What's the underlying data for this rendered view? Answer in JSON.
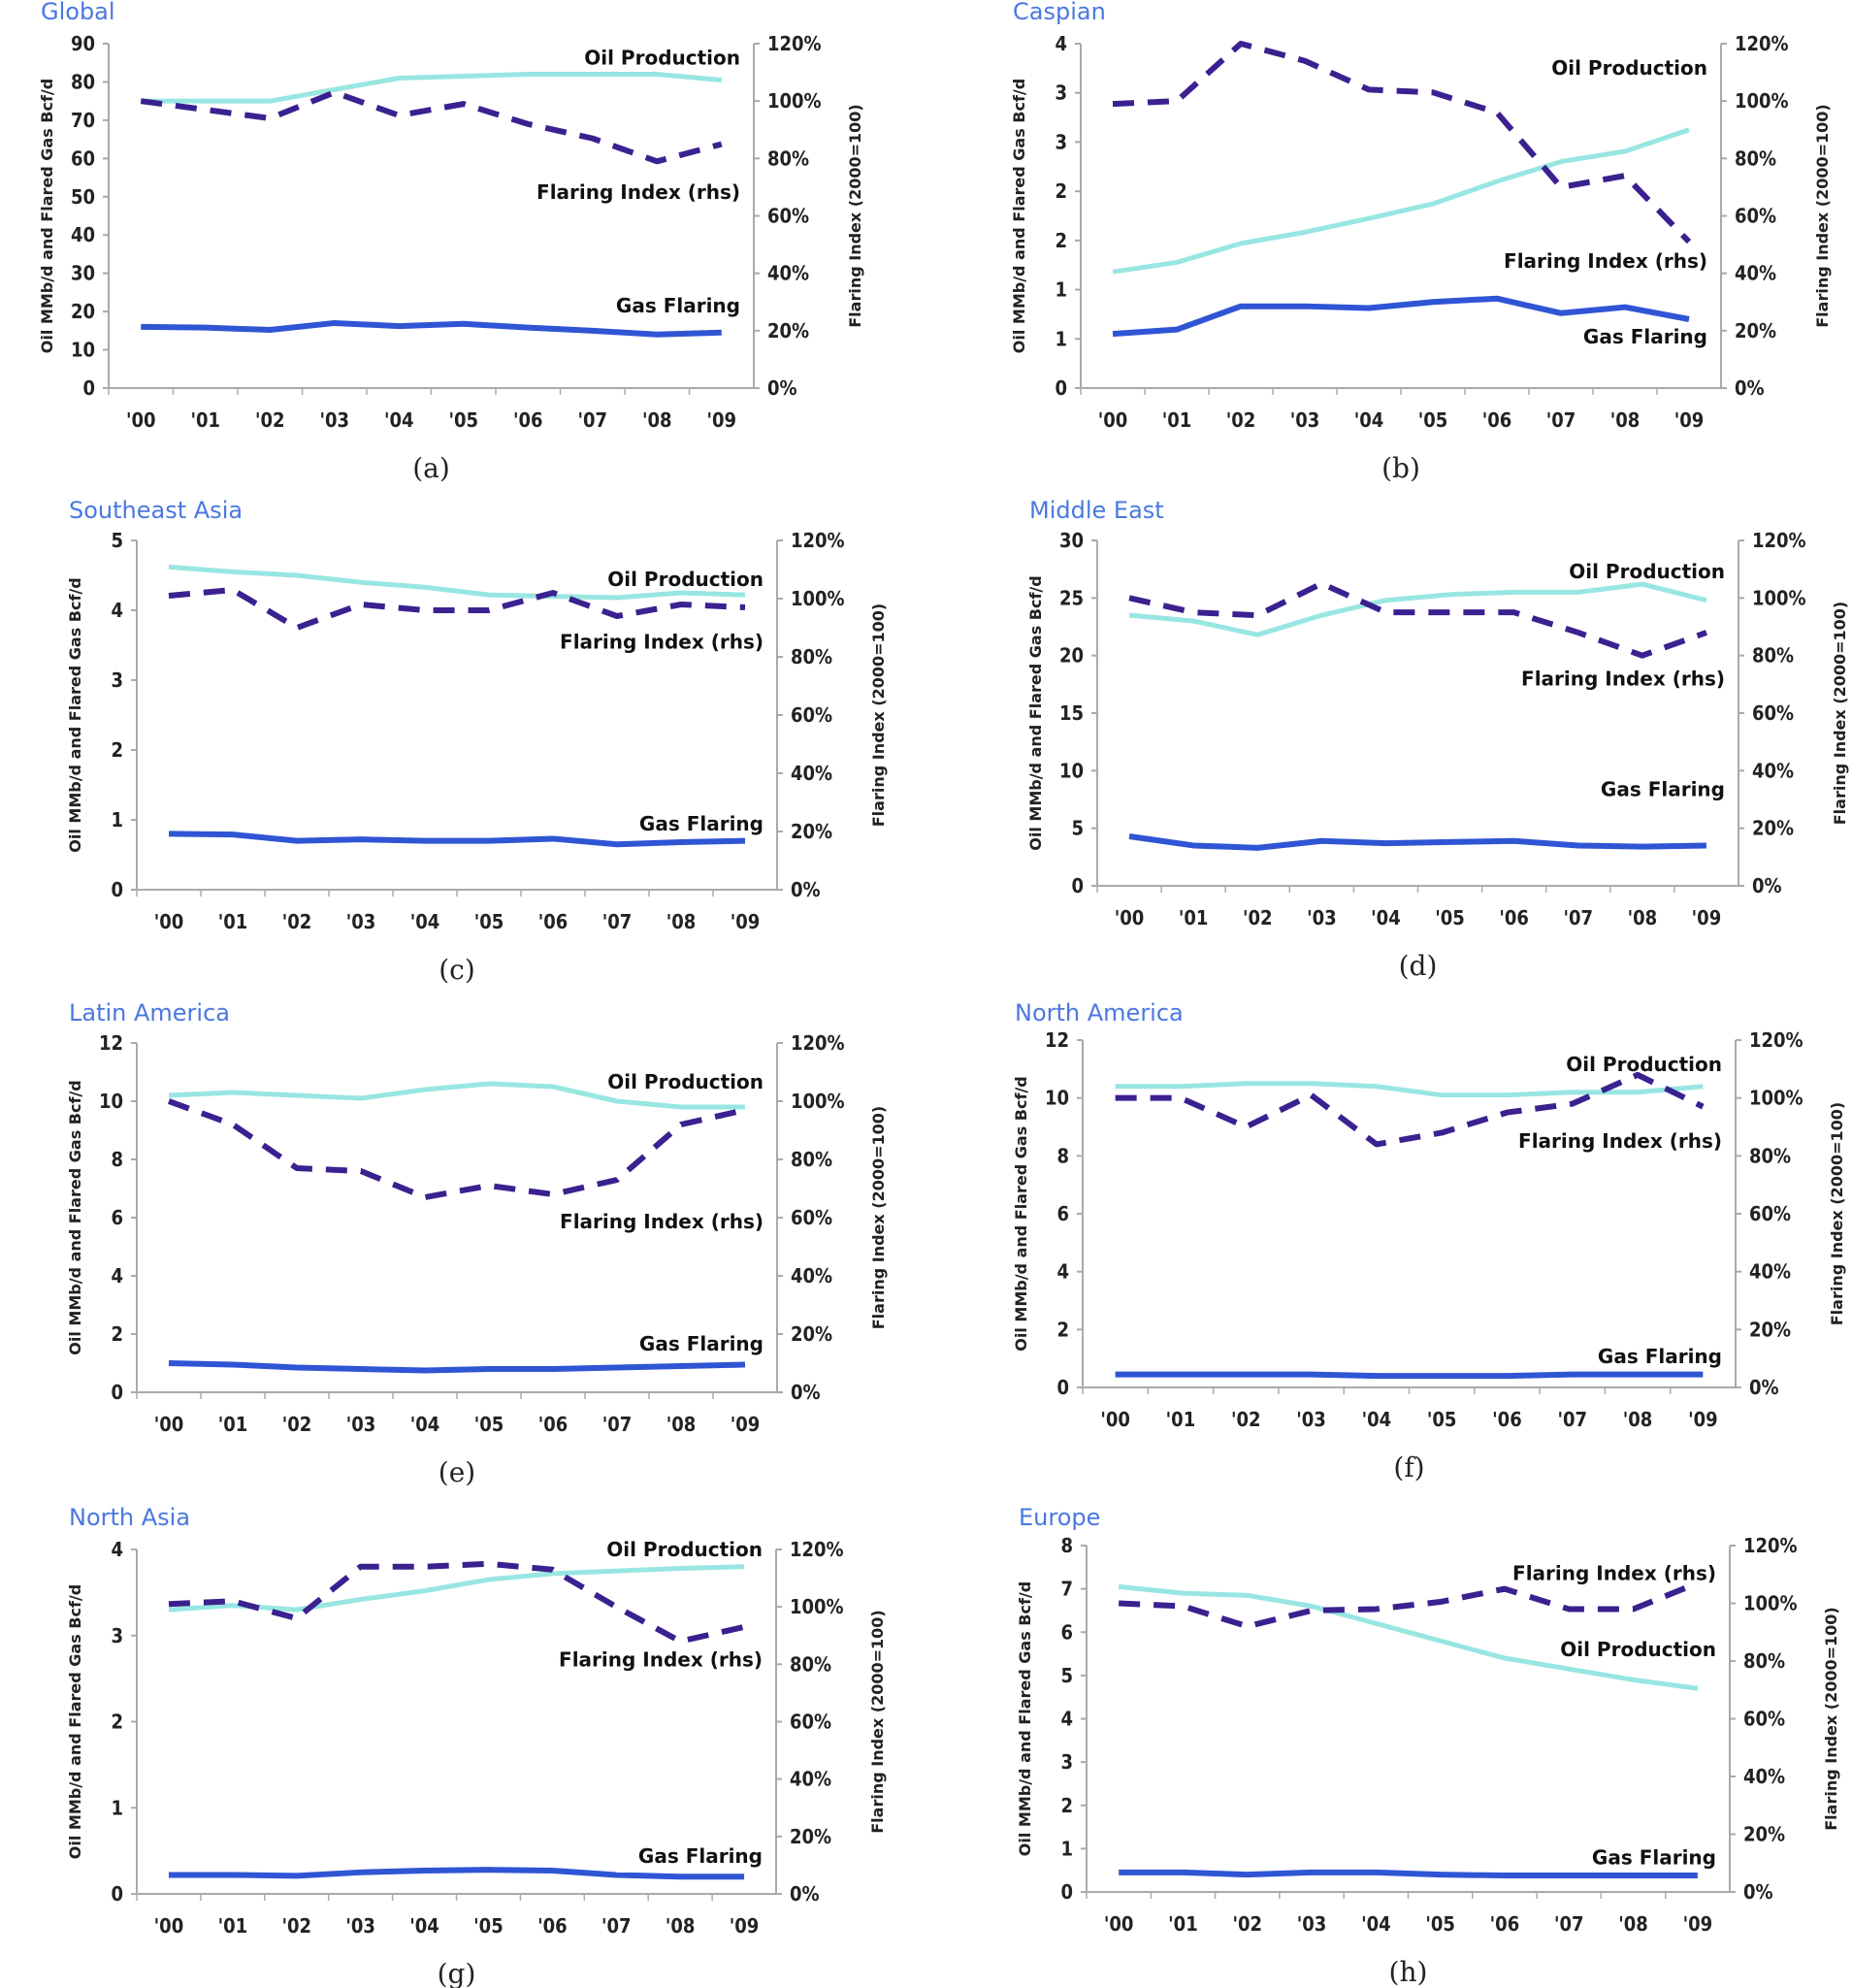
{
  "colors": {
    "oil": "#98e6e2",
    "gas": "#2f55d4",
    "index": "#3b2190",
    "title": "#4a78e0",
    "axis": "#aaaaaa"
  },
  "y_axis_title": "Oil MMb/d and Flared Gas Bcf/d",
  "y2_axis_title": "Flaring Index (2000=100)",
  "chart_data": [
    {
      "type": "line",
      "title": "Global",
      "caption": "(a)",
      "categories": [
        "'00",
        "'01",
        "'02",
        "'03",
        "'04",
        "'05",
        "'06",
        "'07",
        "'08",
        "'09"
      ],
      "ylim": [
        0,
        90
      ],
      "yticks": [
        "0",
        "10",
        "20",
        "30",
        "40",
        "50",
        "60",
        "70",
        "80",
        "90"
      ],
      "y2lim": [
        0,
        120
      ],
      "y2ticks": [
        "0%",
        "20%",
        "40%",
        "60%",
        "80%",
        "100%",
        "120%"
      ],
      "series": [
        {
          "name": "Oil Production",
          "axis": "left",
          "values": [
            75,
            75,
            75,
            78,
            81,
            81.5,
            82,
            82,
            82,
            80.5
          ]
        },
        {
          "name": "Flaring Index (rhs)",
          "axis": "right",
          "values": [
            100,
            97,
            94,
            103,
            95,
            99,
            92,
            87,
            79,
            85
          ]
        },
        {
          "name": "Gas Flaring",
          "axis": "left",
          "values": [
            16,
            15.8,
            15.2,
            17,
            16.2,
            16.8,
            15.8,
            15,
            14,
            14.5
          ]
        }
      ]
    },
    {
      "type": "line",
      "title": "Caspian",
      "caption": "(b)",
      "categories": [
        "'00",
        "'01",
        "'02",
        "'03",
        "'04",
        "'05",
        "'06",
        "'07",
        "'08",
        "'09"
      ],
      "ylim": [
        0,
        4
      ],
      "yticks": [
        "0",
        "1",
        "1",
        "2",
        "2",
        "3",
        "3",
        "4"
      ],
      "y2lim": [
        0,
        120
      ],
      "y2ticks": [
        "0%",
        "20%",
        "40%",
        "60%",
        "80%",
        "100%",
        "120%"
      ],
      "series": [
        {
          "name": "Oil Production",
          "axis": "left",
          "values": [
            1.35,
            1.46,
            1.68,
            1.81,
            1.97,
            2.14,
            2.4,
            2.63,
            2.75,
            3.0
          ]
        },
        {
          "name": "Flaring Index (rhs)",
          "axis": "right",
          "values": [
            99,
            100,
            120,
            114,
            104,
            103,
            96,
            70,
            74,
            51
          ]
        },
        {
          "name": "Gas Flaring",
          "axis": "left",
          "values": [
            0.63,
            0.68,
            0.95,
            0.95,
            0.93,
            1.0,
            1.04,
            0.87,
            0.94,
            0.8
          ]
        }
      ]
    },
    {
      "type": "line",
      "title": "Southeast Asia",
      "caption": "(c)",
      "categories": [
        "'00",
        "'01",
        "'02",
        "'03",
        "'04",
        "'05",
        "'06",
        "'07",
        "'08",
        "'09"
      ],
      "ylim": [
        0,
        5
      ],
      "yticks": [
        "0",
        "1",
        "2",
        "3",
        "4",
        "5"
      ],
      "y2lim": [
        0,
        120
      ],
      "y2ticks": [
        "0%",
        "20%",
        "40%",
        "60%",
        "80%",
        "100%",
        "120%"
      ],
      "series": [
        {
          "name": "Oil Production",
          "axis": "left",
          "values": [
            4.62,
            4.55,
            4.5,
            4.4,
            4.33,
            4.22,
            4.2,
            4.18,
            4.25,
            4.22
          ]
        },
        {
          "name": "Flaring Index (rhs)",
          "axis": "right",
          "values": [
            101,
            103,
            90,
            98,
            96,
            96,
            102,
            94,
            98,
            97
          ]
        },
        {
          "name": "Gas Flaring",
          "axis": "left",
          "values": [
            0.8,
            0.79,
            0.7,
            0.72,
            0.7,
            0.7,
            0.73,
            0.65,
            0.68,
            0.7
          ]
        }
      ]
    },
    {
      "type": "line",
      "title": "Middle East",
      "caption": "(d)",
      "categories": [
        "'00",
        "'01",
        "'02",
        "'03",
        "'04",
        "'05",
        "'06",
        "'07",
        "'08",
        "'09"
      ],
      "ylim": [
        0,
        30
      ],
      "yticks": [
        "0",
        "5",
        "10",
        "15",
        "20",
        "25",
        "30"
      ],
      "y2lim": [
        0,
        120
      ],
      "y2ticks": [
        "0%",
        "20%",
        "40%",
        "60%",
        "80%",
        "100%",
        "120%"
      ],
      "series": [
        {
          "name": "Oil Production",
          "axis": "left",
          "values": [
            23.5,
            23,
            21.8,
            23.5,
            24.8,
            25.3,
            25.5,
            25.5,
            26.2,
            24.8
          ]
        },
        {
          "name": "Flaring Index (rhs)",
          "axis": "right",
          "values": [
            100,
            95,
            94,
            105,
            95,
            95,
            95,
            88,
            80,
            88
          ]
        },
        {
          "name": "Gas Flaring",
          "axis": "left",
          "values": [
            4.3,
            3.5,
            3.3,
            3.9,
            3.7,
            3.8,
            3.9,
            3.5,
            3.4,
            3.5
          ]
        }
      ]
    },
    {
      "type": "line",
      "title": "Latin America",
      "caption": "(e)",
      "categories": [
        "'00",
        "'01",
        "'02",
        "'03",
        "'04",
        "'05",
        "'06",
        "'07",
        "'08",
        "'09"
      ],
      "ylim": [
        0,
        12
      ],
      "yticks": [
        "0",
        "2",
        "4",
        "6",
        "8",
        "10",
        "12"
      ],
      "y2lim": [
        0,
        120
      ],
      "y2ticks": [
        "0%",
        "20%",
        "40%",
        "60%",
        "80%",
        "100%",
        "120%"
      ],
      "series": [
        {
          "name": "Oil Production",
          "axis": "left",
          "values": [
            10.2,
            10.3,
            10.2,
            10.1,
            10.4,
            10.6,
            10.5,
            10.0,
            9.8,
            9.8
          ]
        },
        {
          "name": "Flaring Index (rhs)",
          "axis": "right",
          "values": [
            100,
            92,
            77,
            76,
            67,
            71,
            68,
            73,
            92,
            97
          ]
        },
        {
          "name": "Gas Flaring",
          "axis": "left",
          "values": [
            1.0,
            0.95,
            0.85,
            0.8,
            0.75,
            0.8,
            0.8,
            0.85,
            0.9,
            0.95
          ]
        }
      ]
    },
    {
      "type": "line",
      "title": "North America",
      "caption": "(f)",
      "categories": [
        "'00",
        "'01",
        "'02",
        "'03",
        "'04",
        "'05",
        "'06",
        "'07",
        "'08",
        "'09"
      ],
      "ylim": [
        0,
        12
      ],
      "yticks": [
        "0",
        "2",
        "4",
        "6",
        "8",
        "10",
        "12"
      ],
      "y2lim": [
        0,
        120
      ],
      "y2ticks": [
        "0%",
        "20%",
        "40%",
        "60%",
        "80%",
        "100%",
        "120%"
      ],
      "series": [
        {
          "name": "Oil Production",
          "axis": "left",
          "values": [
            10.4,
            10.4,
            10.5,
            10.5,
            10.4,
            10.1,
            10.1,
            10.2,
            10.2,
            10.4
          ]
        },
        {
          "name": "Flaring Index (rhs)",
          "axis": "right",
          "values": [
            100,
            100,
            90,
            101,
            84,
            88,
            95,
            98,
            108,
            97
          ]
        },
        {
          "name": "Gas Flaring",
          "axis": "left",
          "values": [
            0.45,
            0.45,
            0.45,
            0.45,
            0.4,
            0.4,
            0.4,
            0.45,
            0.45,
            0.45
          ]
        }
      ]
    },
    {
      "type": "line",
      "title": "North Asia",
      "caption": "(g)",
      "categories": [
        "'00",
        "'01",
        "'02",
        "'03",
        "'04",
        "'05",
        "'06",
        "'07",
        "'08",
        "'09"
      ],
      "ylim": [
        0,
        4
      ],
      "yticks": [
        "0",
        "1",
        "2",
        "3",
        "4"
      ],
      "y2lim": [
        0,
        120
      ],
      "y2ticks": [
        "0%",
        "20%",
        "40%",
        "60%",
        "80%",
        "100%",
        "120%"
      ],
      "series": [
        {
          "name": "Oil Production",
          "axis": "left",
          "values": [
            3.3,
            3.35,
            3.3,
            3.42,
            3.52,
            3.65,
            3.72,
            3.75,
            3.78,
            3.8
          ]
        },
        {
          "name": "Flaring Index (rhs)",
          "axis": "right",
          "values": [
            101,
            102,
            96,
            114,
            114,
            115,
            113,
            100,
            88,
            93
          ]
        },
        {
          "name": "Gas Flaring",
          "axis": "left",
          "values": [
            0.22,
            0.22,
            0.21,
            0.25,
            0.27,
            0.28,
            0.27,
            0.22,
            0.2,
            0.2
          ]
        }
      ]
    },
    {
      "type": "line",
      "title": "Europe",
      "caption": "(h)",
      "categories": [
        "'00",
        "'01",
        "'02",
        "'03",
        "'04",
        "'05",
        "'06",
        "'07",
        "'08",
        "'09"
      ],
      "ylim": [
        0,
        8
      ],
      "yticks": [
        "0",
        "1",
        "2",
        "3",
        "4",
        "5",
        "6",
        "7",
        "8"
      ],
      "y2lim": [
        0,
        120
      ],
      "y2ticks": [
        "0%",
        "20%",
        "40%",
        "60%",
        "80%",
        "100%",
        "120%"
      ],
      "series": [
        {
          "name": "Oil Production",
          "axis": "left",
          "values": [
            7.05,
            6.9,
            6.85,
            6.6,
            6.2,
            5.8,
            5.4,
            5.15,
            4.9,
            4.7
          ]
        },
        {
          "name": "Flaring Index (rhs)",
          "axis": "right",
          "values": [
            100,
            99,
            92,
            97.5,
            98,
            100.5,
            105,
            98,
            98,
            107
          ]
        },
        {
          "name": "Gas Flaring",
          "axis": "left",
          "values": [
            0.45,
            0.45,
            0.4,
            0.45,
            0.45,
            0.4,
            0.38,
            0.38,
            0.38,
            0.38
          ]
        }
      ]
    }
  ]
}
